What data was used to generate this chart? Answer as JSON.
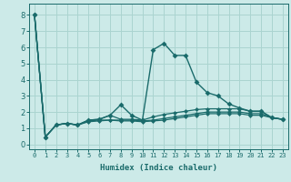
{
  "xlabel": "Humidex (Indice chaleur)",
  "ylabel": "",
  "background_color": "#cceae8",
  "grid_color": "#aad4d0",
  "line_color": "#1a6b6b",
  "xlim": [
    -0.5,
    23.5
  ],
  "ylim": [
    -0.3,
    8.7
  ],
  "xtick_labels": [
    "0",
    "1",
    "2",
    "3",
    "4",
    "5",
    "6",
    "7",
    "8",
    "9",
    "10",
    "11",
    "12",
    "13",
    "14",
    "15",
    "16",
    "17",
    "18",
    "19",
    "20",
    "21",
    "22",
    "23"
  ],
  "ytick_values": [
    0,
    1,
    2,
    3,
    4,
    5,
    6,
    7,
    8
  ],
  "series": [
    [
      8.0,
      0.45,
      1.2,
      1.3,
      1.2,
      1.5,
      1.55,
      1.8,
      2.45,
      1.8,
      1.5,
      5.85,
      6.25,
      5.5,
      5.5,
      3.85,
      3.2,
      3.0,
      2.5,
      2.25,
      2.05,
      2.05,
      1.65,
      1.55
    ],
    [
      8.0,
      0.45,
      1.2,
      1.3,
      1.2,
      1.5,
      1.55,
      1.8,
      1.55,
      1.55,
      1.5,
      1.7,
      1.85,
      1.95,
      2.05,
      2.15,
      2.2,
      2.2,
      2.2,
      2.2,
      2.05,
      2.05,
      1.65,
      1.55
    ],
    [
      8.0,
      0.45,
      1.2,
      1.3,
      1.2,
      1.45,
      1.5,
      1.5,
      1.5,
      1.5,
      1.45,
      1.5,
      1.6,
      1.7,
      1.8,
      1.9,
      2.0,
      2.0,
      2.0,
      2.0,
      1.9,
      1.9,
      1.65,
      1.55
    ],
    [
      8.0,
      0.45,
      1.2,
      1.3,
      1.2,
      1.4,
      1.45,
      1.5,
      1.45,
      1.45,
      1.4,
      1.45,
      1.5,
      1.6,
      1.7,
      1.8,
      1.9,
      1.9,
      1.9,
      1.9,
      1.8,
      1.8,
      1.65,
      1.55
    ]
  ]
}
